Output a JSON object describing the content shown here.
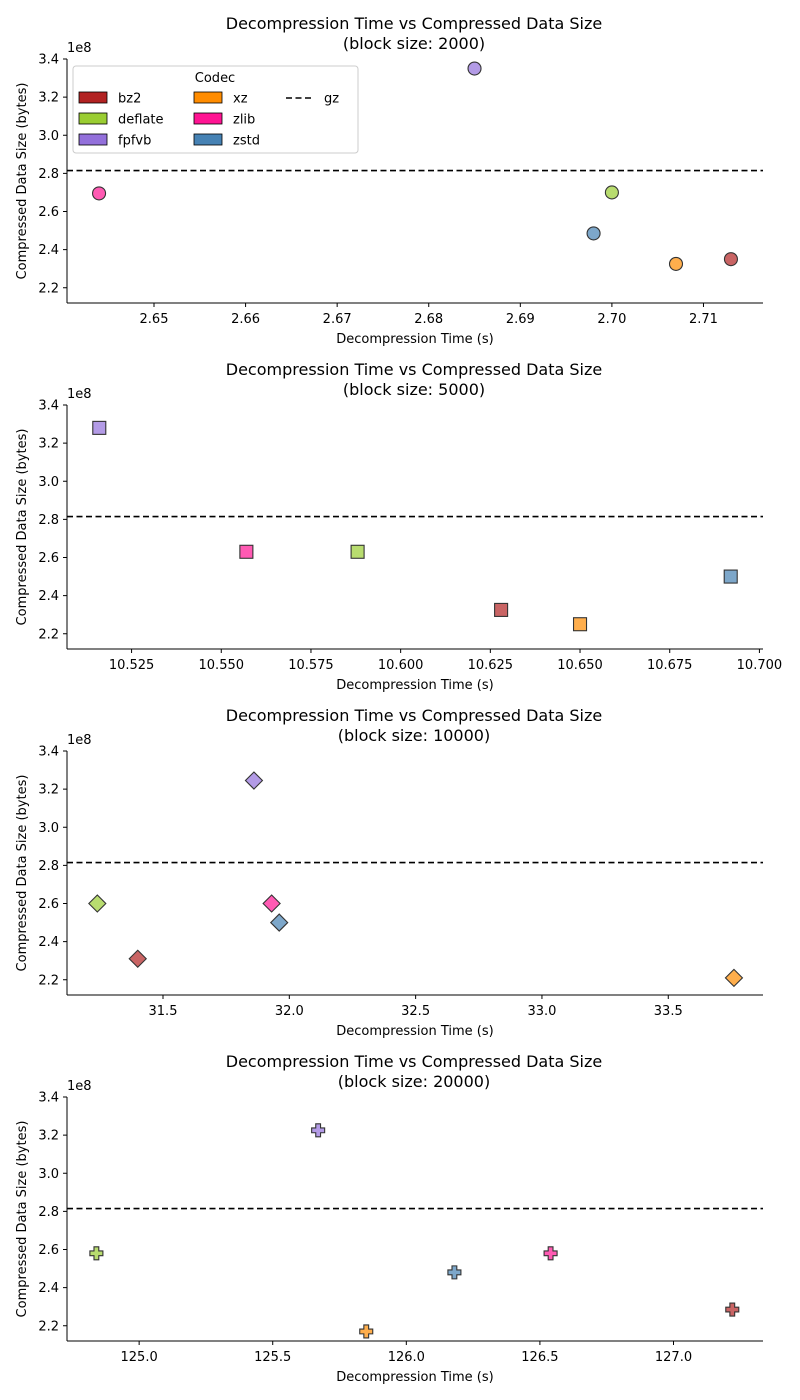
{
  "colors": {
    "bz2": "#b22222",
    "deflate": "#9acd32",
    "fpfvb": "#9370db",
    "xz": "#ff8c00",
    "zlib": "#ff1493",
    "zstd": "#4682b4",
    "gz": "#000000"
  },
  "legend": {
    "title": "Codec",
    "entries": [
      "bz2",
      "deflate",
      "fpfvb",
      "xz",
      "zlib",
      "zstd",
      "gz"
    ]
  },
  "chart_data": [
    {
      "type": "scatter",
      "title": "Decompression Time vs Compressed Data Size",
      "subtitle": "(block size: 2000)",
      "xlabel": "Decompression Time (s)",
      "ylabel": "Compressed Data Size (bytes)",
      "y_multiplier": "1e8",
      "marker": "circle",
      "xlim": [
        2.6405,
        2.7165
      ],
      "ylim": [
        2.12,
        3.4
      ],
      "xticks": [
        2.65,
        2.66,
        2.67,
        2.68,
        2.69,
        2.7,
        2.71
      ],
      "xtick_labels": [
        "2.65",
        "2.66",
        "2.67",
        "2.68",
        "2.69",
        "2.70",
        "2.71"
      ],
      "yticks": [
        2.2,
        2.4,
        2.6,
        2.8,
        3.0,
        3.2,
        3.4
      ],
      "ytick_labels": [
        "2.2",
        "2.4",
        "2.6",
        "2.8",
        "3.0",
        "3.2",
        "3.4"
      ],
      "hline": {
        "name": "gz",
        "y": 2.815
      },
      "legend": true,
      "legend_placement": "top-left",
      "points": [
        {
          "codec": "bz2",
          "x": 2.713,
          "y": 2.35
        },
        {
          "codec": "deflate",
          "x": 2.7,
          "y": 2.7
        },
        {
          "codec": "fpfvb",
          "x": 2.685,
          "y": 3.35
        },
        {
          "codec": "xz",
          "x": 2.707,
          "y": 2.325
        },
        {
          "codec": "zlib",
          "x": 2.644,
          "y": 2.695
        },
        {
          "codec": "zstd",
          "x": 2.698,
          "y": 2.485
        }
      ]
    },
    {
      "type": "scatter",
      "title": "Decompression Time vs Compressed Data Size",
      "subtitle": "(block size: 5000)",
      "xlabel": "Decompression Time (s)",
      "ylabel": "Compressed Data Size (bytes)",
      "y_multiplier": "1e8",
      "marker": "square",
      "xlim": [
        10.507,
        10.701
      ],
      "ylim": [
        2.12,
        3.4
      ],
      "xticks": [
        10.525,
        10.55,
        10.575,
        10.6,
        10.625,
        10.65,
        10.675,
        10.7
      ],
      "xtick_labels": [
        "10.525",
        "10.550",
        "10.575",
        "10.600",
        "10.625",
        "10.650",
        "10.675",
        "10.700"
      ],
      "yticks": [
        2.2,
        2.4,
        2.6,
        2.8,
        3.0,
        3.2,
        3.4
      ],
      "ytick_labels": [
        "2.2",
        "2.4",
        "2.6",
        "2.8",
        "3.0",
        "3.2",
        "3.4"
      ],
      "hline": {
        "name": "gz",
        "y": 2.815
      },
      "legend": false,
      "points": [
        {
          "codec": "bz2",
          "x": 10.628,
          "y": 2.325
        },
        {
          "codec": "deflate",
          "x": 10.588,
          "y": 2.63
        },
        {
          "codec": "fpfvb",
          "x": 10.516,
          "y": 3.28
        },
        {
          "codec": "xz",
          "x": 10.65,
          "y": 2.25
        },
        {
          "codec": "zlib",
          "x": 10.557,
          "y": 2.63
        },
        {
          "codec": "zstd",
          "x": 10.692,
          "y": 2.5
        }
      ]
    },
    {
      "type": "scatter",
      "title": "Decompression Time vs Compressed Data Size",
      "subtitle": "(block size: 10000)",
      "xlabel": "Decompression Time (s)",
      "ylabel": "Compressed Data Size (bytes)",
      "y_multiplier": "1e8",
      "marker": "diamond",
      "xlim": [
        31.12,
        33.875
      ],
      "ylim": [
        2.12,
        3.4
      ],
      "xticks": [
        31.5,
        32.0,
        32.5,
        33.0,
        33.5
      ],
      "xtick_labels": [
        "31.5",
        "32.0",
        "32.5",
        "33.0",
        "33.5"
      ],
      "yticks": [
        2.2,
        2.4,
        2.6,
        2.8,
        3.0,
        3.2,
        3.4
      ],
      "ytick_labels": [
        "2.2",
        "2.4",
        "2.6",
        "2.8",
        "3.0",
        "3.2",
        "3.4"
      ],
      "hline": {
        "name": "gz",
        "y": 2.815
      },
      "legend": false,
      "points": [
        {
          "codec": "bz2",
          "x": 31.4,
          "y": 2.31
        },
        {
          "codec": "deflate",
          "x": 31.24,
          "y": 2.6
        },
        {
          "codec": "fpfvb",
          "x": 31.86,
          "y": 3.245
        },
        {
          "codec": "xz",
          "x": 33.76,
          "y": 2.21
        },
        {
          "codec": "zlib",
          "x": 31.93,
          "y": 2.6
        },
        {
          "codec": "zstd",
          "x": 31.96,
          "y": 2.5
        }
      ]
    },
    {
      "type": "scatter",
      "title": "Decompression Time vs Compressed Data Size",
      "subtitle": "(block size: 20000)",
      "xlabel": "Decompression Time (s)",
      "ylabel": "Compressed Data Size (bytes)",
      "y_multiplier": "1e8",
      "marker": "plus",
      "xlim": [
        124.73,
        127.335
      ],
      "ylim": [
        2.12,
        3.4
      ],
      "xticks": [
        125.0,
        125.5,
        126.0,
        126.5,
        127.0
      ],
      "xtick_labels": [
        "125.0",
        "125.5",
        "126.0",
        "126.5",
        "127.0"
      ],
      "yticks": [
        2.2,
        2.4,
        2.6,
        2.8,
        3.0,
        3.2,
        3.4
      ],
      "ytick_labels": [
        "2.2",
        "2.4",
        "2.6",
        "2.8",
        "3.0",
        "3.2",
        "3.4"
      ],
      "hline": {
        "name": "gz",
        "y": 2.815
      },
      "legend": false,
      "points": [
        {
          "codec": "bz2",
          "x": 127.22,
          "y": 2.285
        },
        {
          "codec": "deflate",
          "x": 124.84,
          "y": 2.58
        },
        {
          "codec": "fpfvb",
          "x": 125.67,
          "y": 3.225
        },
        {
          "codec": "xz",
          "x": 125.85,
          "y": 2.17
        },
        {
          "codec": "zlib",
          "x": 126.54,
          "y": 2.58
        },
        {
          "codec": "zstd",
          "x": 126.18,
          "y": 2.48
        }
      ]
    }
  ]
}
